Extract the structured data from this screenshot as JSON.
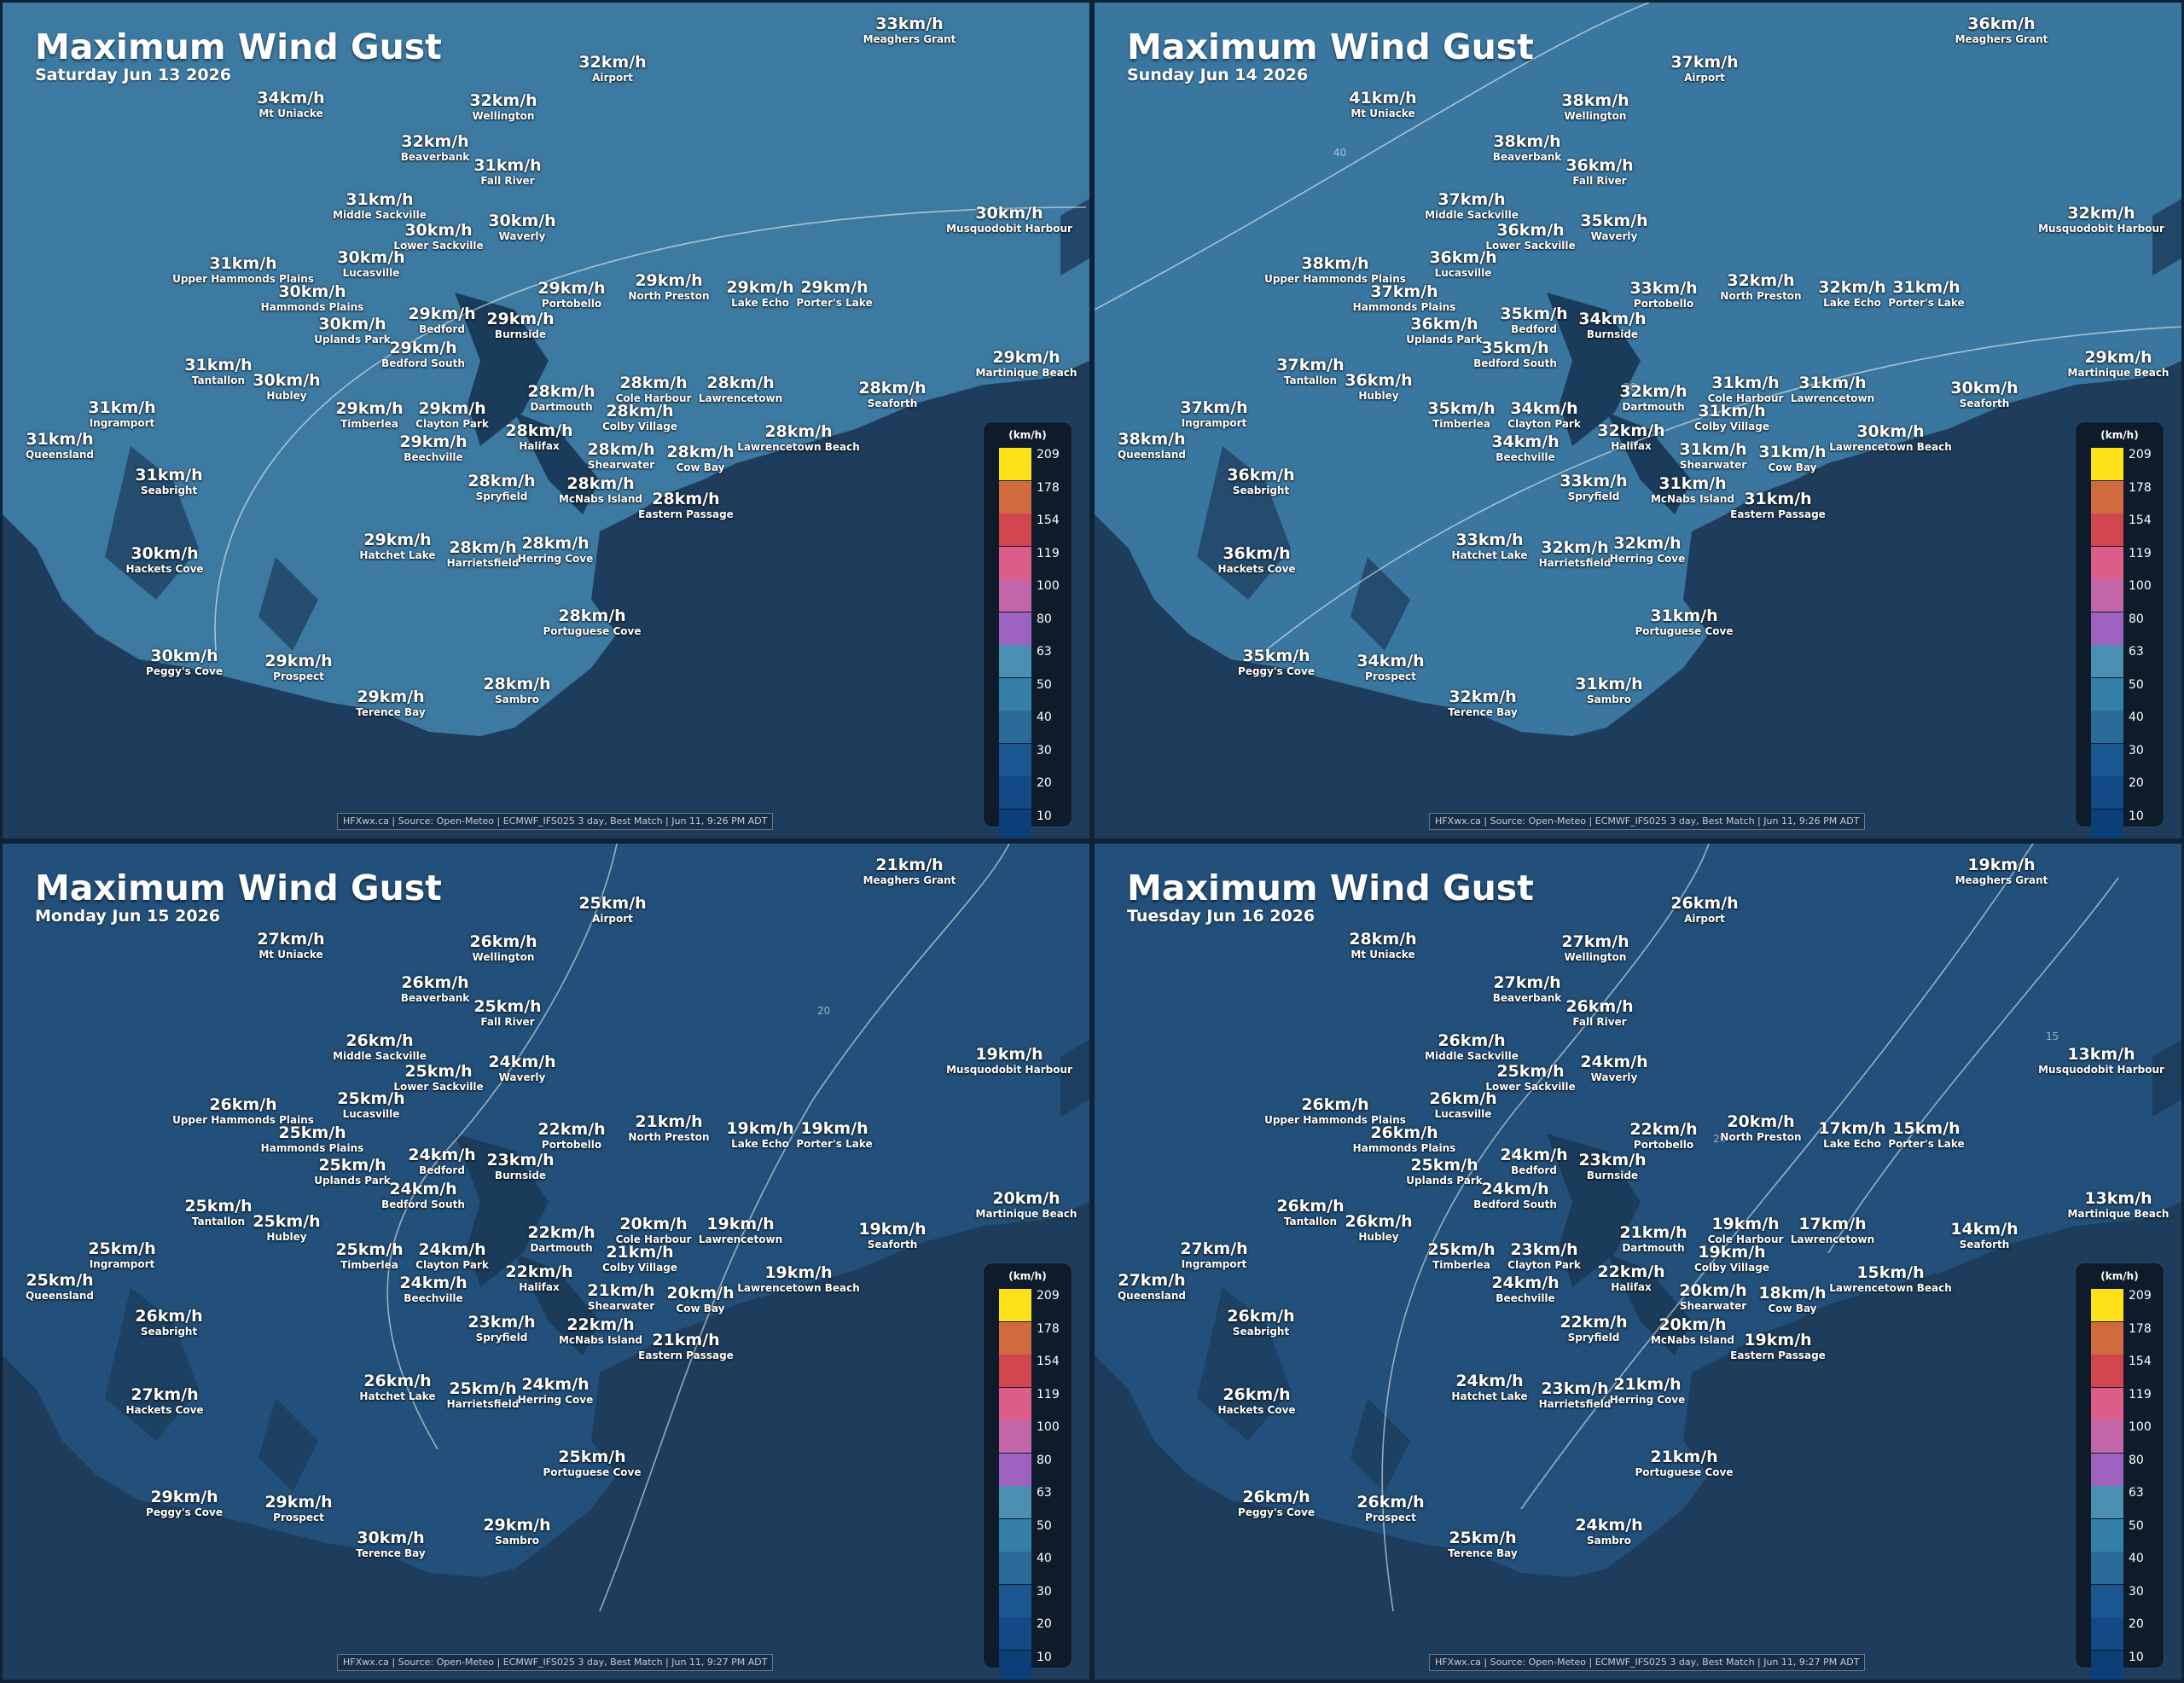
{
  "title": "Maximum Wind Gust",
  "footer_prefix": "HFXwx.ca | Source: Open-Meteo | ECMWF_IFS025 3 day, Best Match | ",
  "legend": {
    "unit": "(km/h)",
    "levels": [
      {
        "label": "209",
        "color": "#fde21a"
      },
      {
        "label": "178",
        "color": "#cf6b3f"
      },
      {
        "label": "154",
        "color": "#d24650"
      },
      {
        "label": "119",
        "color": "#dc5c8a"
      },
      {
        "label": "100",
        "color": "#c266a8"
      },
      {
        "label": "80",
        "color": "#9e63c0"
      },
      {
        "label": "63",
        "color": "#4b8fb3"
      },
      {
        "label": "50",
        "color": "#3580a8"
      },
      {
        "label": "40",
        "color": "#2a6b9a"
      },
      {
        "label": "30",
        "color": "#1a5690"
      },
      {
        "label": "20",
        "color": "#114a84"
      },
      {
        "label": "10",
        "color": "#0c3f78"
      }
    ]
  },
  "locations": [
    "Meaghers Grant",
    "Airport",
    "Mt Uniacke",
    "Wellington",
    "Beaverbank",
    "Fall River",
    "Middle Sackville",
    "Waverly",
    "Lower Sackville",
    "Musquodobit Harbour",
    "Lucasville",
    "Upper Hammonds Plains",
    "Hammonds Plains",
    "Portobello",
    "North Preston",
    "Lake Echo",
    "Porter's Lake",
    "Bedford",
    "Uplands Park",
    "Burnside",
    "Bedford South",
    "Martinique Beach",
    "Tantallon",
    "Hubley",
    "Dartmouth",
    "Cole Harbour",
    "Lawrencetown",
    "Seaforth",
    "Ingramport",
    "Timberlea",
    "Clayton Park",
    "Colby Village",
    "Halifax",
    "Lawrencetown Beach",
    "Queensland",
    "Beechville",
    "Shearwater",
    "Cow Bay",
    "Seabright",
    "Spryfield",
    "McNabs Island",
    "Eastern Passage",
    "Hatchet Lake",
    "Harrietsfield",
    "Herring Cove",
    "Hackets Cove",
    "Portuguese Cove",
    "Peggy's Cove",
    "Prospect",
    "Terence Bay",
    "Sambro"
  ],
  "panels": [
    {
      "date": "Saturday Jun 13 2026",
      "updated": "Jun 11, 9:26 PM ADT",
      "contours": [
        "30"
      ],
      "values": [
        "33km/h",
        "32km/h",
        "34km/h",
        "32km/h",
        "32km/h",
        "31km/h",
        "31km/h",
        "30km/h",
        "30km/h",
        "30km/h",
        "30km/h",
        "31km/h",
        "30km/h",
        "29km/h",
        "29km/h",
        "29km/h",
        "29km/h",
        "29km/h",
        "30km/h",
        "29km/h",
        "29km/h",
        "29km/h",
        "31km/h",
        "30km/h",
        "28km/h",
        "28km/h",
        "28km/h",
        "28km/h",
        "31km/h",
        "29km/h",
        "29km/h",
        "28km/h",
        "28km/h",
        "28km/h",
        "31km/h",
        "29km/h",
        "28km/h",
        "28km/h",
        "31km/h",
        "28km/h",
        "28km/h",
        "28km/h",
        "29km/h",
        "28km/h",
        "28km/h",
        "30km/h",
        "28km/h",
        "30km/h",
        "29km/h",
        "29km/h",
        "28km/h"
      ]
    },
    {
      "date": "Sunday Jun 14 2026",
      "updated": "Jun 11, 9:26 PM ADT",
      "contours": [
        "40",
        "30"
      ],
      "values": [
        "36km/h",
        "37km/h",
        "41km/h",
        "38km/h",
        "38km/h",
        "36km/h",
        "37km/h",
        "35km/h",
        "36km/h",
        "32km/h",
        "36km/h",
        "38km/h",
        "37km/h",
        "33km/h",
        "32km/h",
        "32km/h",
        "31km/h",
        "35km/h",
        "36km/h",
        "34km/h",
        "35km/h",
        "29km/h",
        "37km/h",
        "36km/h",
        "32km/h",
        "31km/h",
        "31km/h",
        "30km/h",
        "37km/h",
        "35km/h",
        "34km/h",
        "31km/h",
        "32km/h",
        "30km/h",
        "38km/h",
        "34km/h",
        "31km/h",
        "31km/h",
        "36km/h",
        "33km/h",
        "31km/h",
        "31km/h",
        "33km/h",
        "32km/h",
        "32km/h",
        "36km/h",
        "31km/h",
        "35km/h",
        "34km/h",
        "32km/h",
        "31km/h"
      ]
    },
    {
      "date": "Monday Jun 15 2026",
      "updated": "Jun 11, 9:27 PM ADT",
      "contours": [
        "20"
      ],
      "values": [
        "21km/h",
        "25km/h",
        "27km/h",
        "26km/h",
        "26km/h",
        "25km/h",
        "26km/h",
        "24km/h",
        "25km/h",
        "19km/h",
        "25km/h",
        "26km/h",
        "25km/h",
        "22km/h",
        "21km/h",
        "19km/h",
        "19km/h",
        "24km/h",
        "25km/h",
        "23km/h",
        "24km/h",
        "20km/h",
        "25km/h",
        "25km/h",
        "22km/h",
        "20km/h",
        "19km/h",
        "19km/h",
        "25km/h",
        "25km/h",
        "24km/h",
        "21km/h",
        "22km/h",
        "19km/h",
        "25km/h",
        "24km/h",
        "21km/h",
        "20km/h",
        "26km/h",
        "23km/h",
        "22km/h",
        "21km/h",
        "26km/h",
        "25km/h",
        "24km/h",
        "27km/h",
        "25km/h",
        "29km/h",
        "29km/h",
        "30km/h",
        "29km/h"
      ]
    },
    {
      "date": "Tuesday Jun 16 2026",
      "updated": "Jun 11, 9:27 PM ADT",
      "contours": [
        "25",
        "20",
        "15"
      ],
      "values": [
        "19km/h",
        "26km/h",
        "28km/h",
        "27km/h",
        "27km/h",
        "26km/h",
        "26km/h",
        "24km/h",
        "25km/h",
        "13km/h",
        "26km/h",
        "26km/h",
        "26km/h",
        "22km/h",
        "20km/h",
        "17km/h",
        "15km/h",
        "24km/h",
        "25km/h",
        "23km/h",
        "24km/h",
        "13km/h",
        "26km/h",
        "26km/h",
        "21km/h",
        "19km/h",
        "17km/h",
        "14km/h",
        "27km/h",
        "25km/h",
        "23km/h",
        "19km/h",
        "22km/h",
        "15km/h",
        "27km/h",
        "24km/h",
        "20km/h",
        "18km/h",
        "26km/h",
        "22km/h",
        "20km/h",
        "19km/h",
        "24km/h",
        "23km/h",
        "21km/h",
        "26km/h",
        "21km/h",
        "26km/h",
        "26km/h",
        "25km/h",
        "24km/h"
      ]
    }
  ]
}
